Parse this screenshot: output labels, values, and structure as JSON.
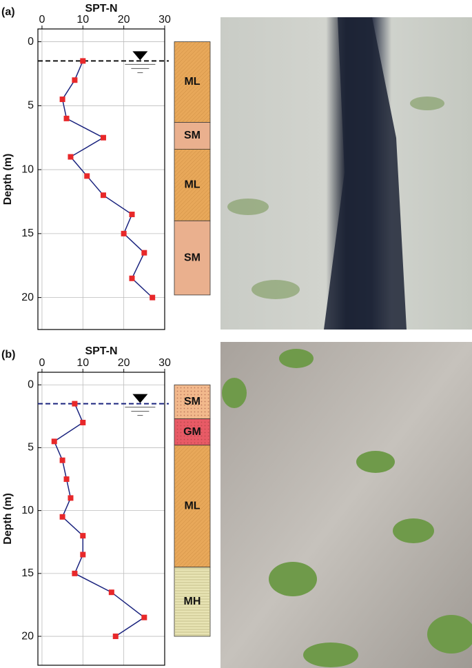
{
  "chart_data": [
    {
      "type": "line",
      "panel_label": "(a)",
      "title": "SPT-N",
      "y_label": "Depth (m)",
      "values": [
        10,
        8,
        5,
        6,
        15,
        7,
        11,
        15,
        22,
        20,
        25,
        22,
        27
      ],
      "depths": [
        1.5,
        3,
        4.5,
        6,
        7.5,
        9,
        10.5,
        12,
        13.5,
        15,
        16.5,
        18.5,
        20
      ],
      "line_color": "#1a237e",
      "marker_color": "#e8282a",
      "xlim": [
        -1,
        30
      ],
      "xticks": [
        0,
        10,
        20,
        30
      ],
      "x_axis_position": "top",
      "ylim": [
        -1,
        22.5
      ],
      "yticks": [
        0,
        5,
        10,
        15,
        20
      ],
      "y_inverted": true,
      "grid": true,
      "water_table": 1.5,
      "water_table_color": "#111111",
      "layers": [
        {
          "label": "ML",
          "top": 0,
          "bottom": 6.3,
          "color": "#e8a85a",
          "pattern": "hatch"
        },
        {
          "label": "SM",
          "top": 6.3,
          "bottom": 8.4,
          "color": "#eab08e",
          "pattern": "none"
        },
        {
          "label": "ML",
          "top": 8.4,
          "bottom": 14,
          "color": "#e8a85a",
          "pattern": "hatch"
        },
        {
          "label": "SM",
          "top": 14,
          "bottom": 19.8,
          "color": "#eab08e",
          "pattern": "none"
        }
      ]
    },
    {
      "type": "line",
      "panel_label": "(b)",
      "title": "SPT-N",
      "y_label": "Depth (m)",
      "values": [
        8,
        10,
        3,
        5,
        6,
        7,
        5,
        10,
        10,
        8,
        17,
        25,
        18
      ],
      "depths": [
        1.5,
        3,
        4.5,
        6,
        7.5,
        9,
        10.5,
        12,
        13.5,
        15,
        16.5,
        18.5,
        20
      ],
      "line_color": "#1a237e",
      "marker_color": "#e8282a",
      "xlim": [
        -1,
        30
      ],
      "xticks": [
        0,
        10,
        20,
        30
      ],
      "x_axis_position": "top",
      "ylim": [
        -1,
        22.3
      ],
      "yticks": [
        0,
        5,
        10,
        15,
        20
      ],
      "y_inverted": true,
      "grid": true,
      "water_table": 1.5,
      "water_table_color": "#1a237e",
      "layers": [
        {
          "label": "SM",
          "top": 0,
          "bottom": 2.7,
          "color": "#f2b98c",
          "pattern": "dots"
        },
        {
          "label": "GM",
          "top": 2.7,
          "bottom": 4.8,
          "color": "#e85a66",
          "pattern": "dots"
        },
        {
          "label": "ML",
          "top": 4.8,
          "bottom": 14.5,
          "color": "#e8a85a",
          "pattern": "hatch"
        },
        {
          "label": "MH",
          "top": 14.5,
          "bottom": 20,
          "color": "#e8e4b4",
          "pattern": "lines"
        }
      ]
    }
  ]
}
